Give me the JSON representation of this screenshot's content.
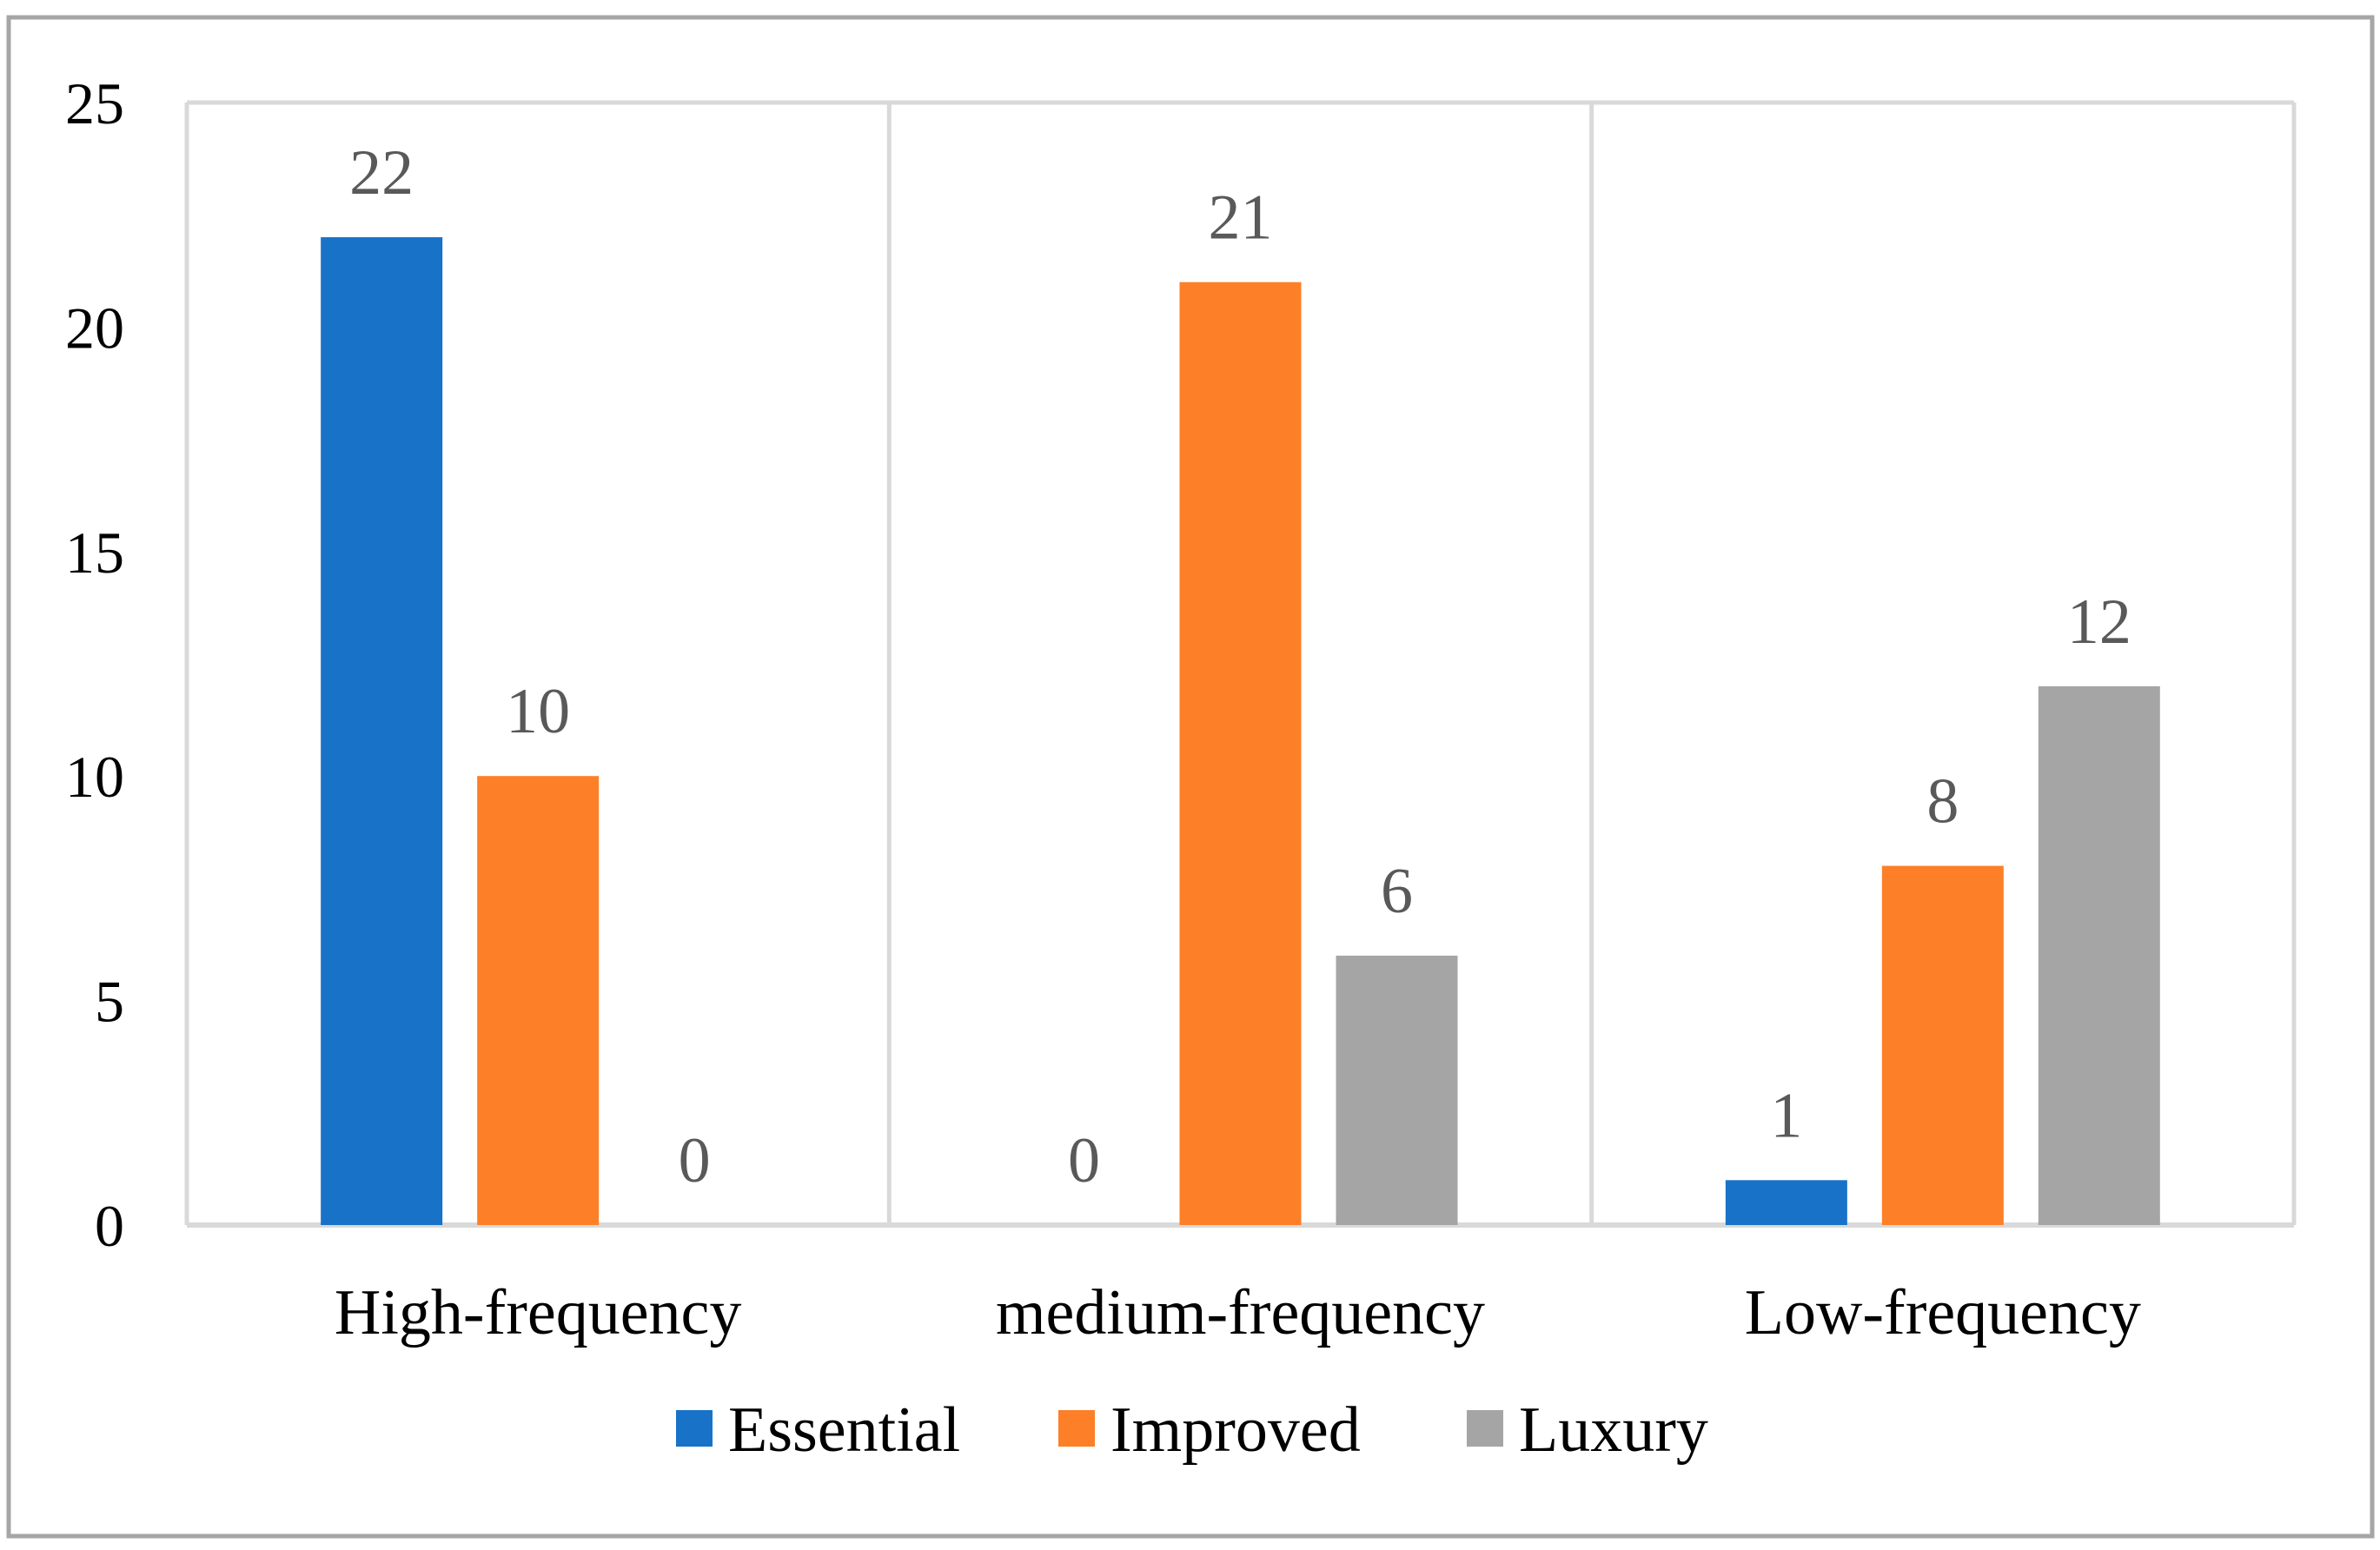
{
  "chart_data": {
    "type": "bar",
    "title": "",
    "xlabel": "",
    "ylabel": "",
    "ylim": [
      0,
      25
    ],
    "yticks": [
      "0",
      "5",
      "10",
      "15",
      "20",
      "25"
    ],
    "categories": [
      "High-frequency",
      "medium-frequency",
      "Low-frequency"
    ],
    "series": [
      {
        "name": "Essential",
        "values": [
          22,
          0,
          1
        ],
        "color": "#1872C8"
      },
      {
        "name": "Improved",
        "values": [
          10,
          21,
          8
        ],
        "color": "#FD7F28"
      },
      {
        "name": "Luxury",
        "values": [
          0,
          6,
          12
        ],
        "color": "#A5A5A5"
      }
    ],
    "data_labels": [
      [
        "22",
        "0",
        "1"
      ],
      [
        "10",
        "21",
        "8"
      ],
      [
        "0",
        "6",
        "12"
      ]
    ],
    "legend_position": "bottom",
    "grid": "vertical category separators"
  },
  "colors": {
    "frame": "#A6A6A6",
    "gridline": "#D9D9D9",
    "axis": "#D9D9D9",
    "data_label_text": "#595959",
    "tick_text": "#000000"
  }
}
